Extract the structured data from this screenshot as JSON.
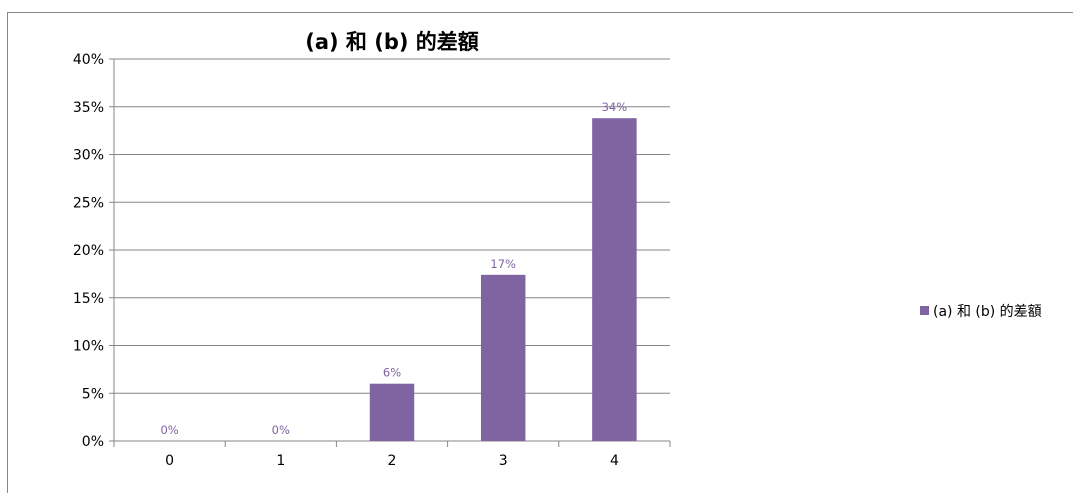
{
  "chart_data": {
    "type": "bar",
    "title": "(a) 和 (b) 的差額",
    "categories": [
      "0",
      "1",
      "2",
      "3",
      "4"
    ],
    "series": [
      {
        "name": "(a) 和 (b) 的差額",
        "values": [
          0,
          0,
          6,
          17.4,
          33.8
        ],
        "labels": [
          "0%",
          "0%",
          "6%",
          "17%",
          "34%"
        ],
        "color": "#8064a2"
      }
    ],
    "ylim": [
      0,
      40
    ],
    "yticks": [
      "0%",
      "5%",
      "10%",
      "15%",
      "20%",
      "25%",
      "30%",
      "35%",
      "40%"
    ],
    "xlabel": "",
    "ylabel": "",
    "grid": true,
    "legend_position": "right"
  }
}
